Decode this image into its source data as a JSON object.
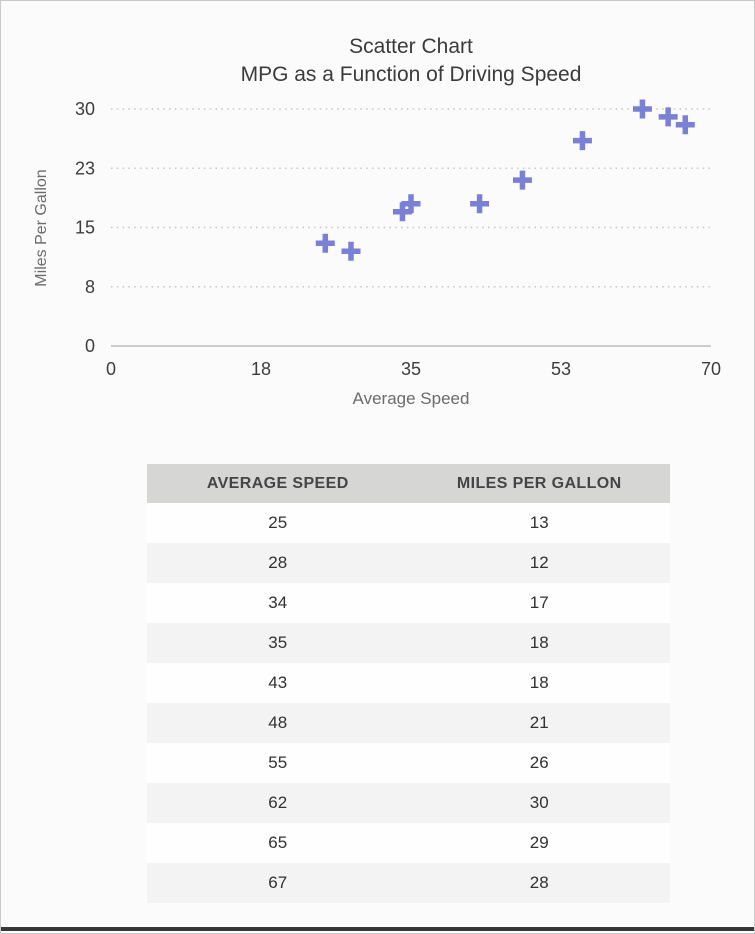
{
  "chart": {
    "title_line1": "Scatter Chart",
    "title_line2": "MPG as a Function of Driving Speed",
    "marker_color": "#7a80d4",
    "grid_color": "#c9c9c9",
    "baseline_color": "#bdbdbd"
  },
  "chart_data": {
    "type": "scatter",
    "title": "Scatter Chart",
    "subtitle": "MPG as a Function of Driving Speed",
    "xlabel": "Average Speed",
    "ylabel": "Miles Per Gallon",
    "x": [
      25,
      28,
      34,
      35,
      43,
      48,
      55,
      62,
      65,
      67
    ],
    "y": [
      13,
      12,
      17,
      18,
      18,
      21,
      26,
      30,
      29,
      28
    ],
    "xlim": [
      0,
      70
    ],
    "ylim": [
      0,
      30
    ],
    "x_tick_labels": [
      "0",
      "18",
      "35",
      "53",
      "70"
    ],
    "y_tick_labels": [
      "0",
      "8",
      "15",
      "23",
      "30"
    ],
    "grid": true,
    "legend": false,
    "marker": "plus"
  },
  "table": {
    "headers": [
      "AVERAGE SPEED",
      "MILES PER GALLON"
    ],
    "rows": [
      [
        "25",
        "13"
      ],
      [
        "28",
        "12"
      ],
      [
        "34",
        "17"
      ],
      [
        "35",
        "18"
      ],
      [
        "43",
        "18"
      ],
      [
        "48",
        "21"
      ],
      [
        "55",
        "26"
      ],
      [
        "62",
        "30"
      ],
      [
        "65",
        "29"
      ],
      [
        "67",
        "28"
      ]
    ]
  }
}
